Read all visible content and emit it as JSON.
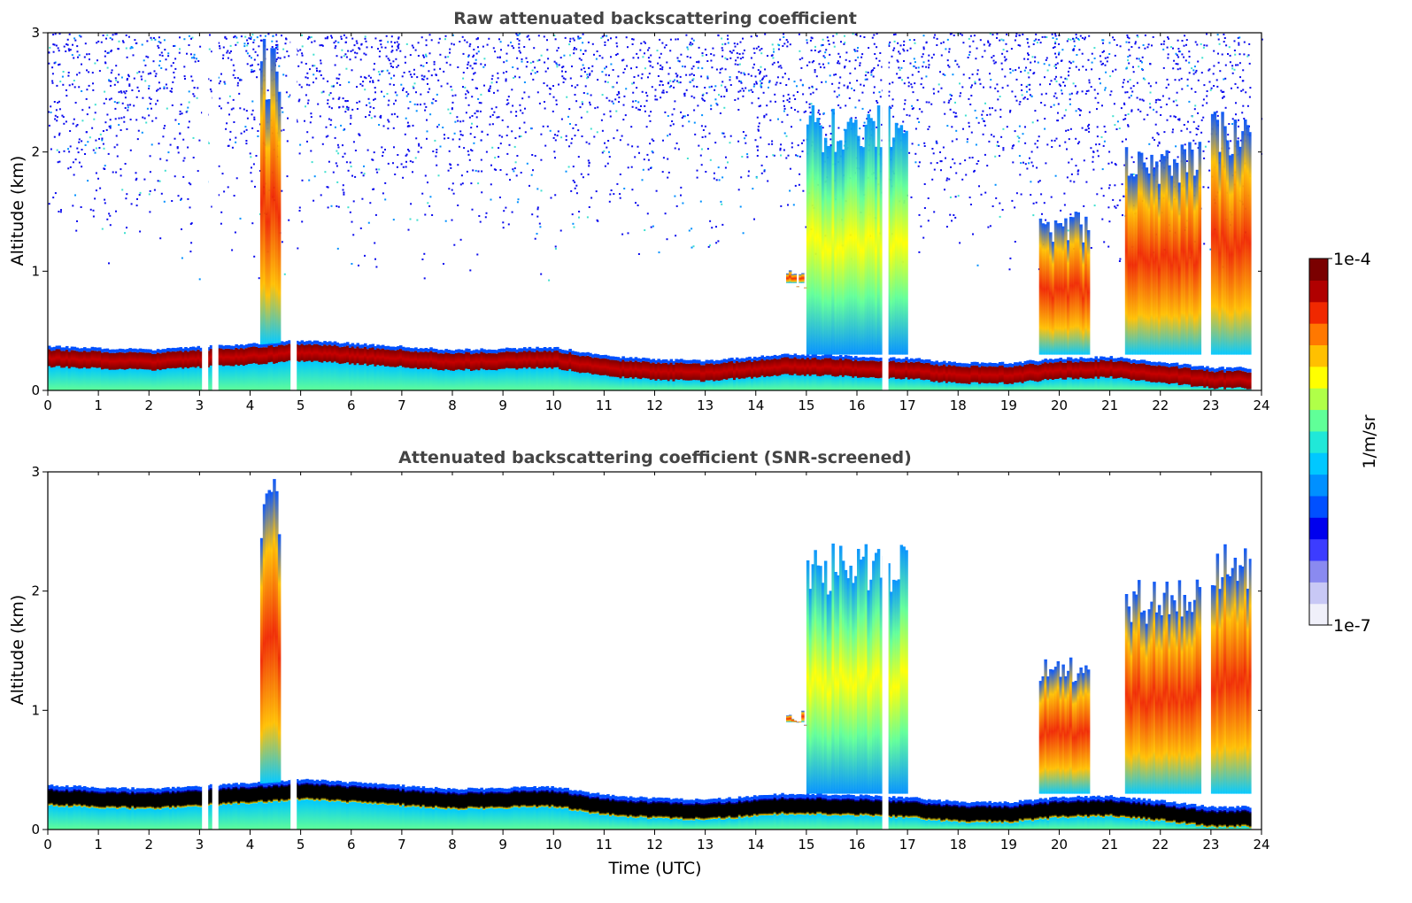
{
  "chart_data": [
    {
      "type": "heatmap",
      "title": "Raw attenuated backscattering coefficient",
      "xlabel": "",
      "ylabel": "Altitude (km)",
      "xlim": [
        0,
        24
      ],
      "ylim": [
        0,
        3
      ],
      "xticks": [
        "0",
        "1",
        "2",
        "3",
        "4",
        "5",
        "6",
        "7",
        "8",
        "9",
        "10",
        "11",
        "12",
        "13",
        "14",
        "15",
        "16",
        "17",
        "18",
        "19",
        "20",
        "21",
        "22",
        "23",
        "24"
      ],
      "yticks": [
        "0",
        "1",
        "2",
        "3"
      ],
      "screened": false
    },
    {
      "type": "heatmap",
      "title": "Attenuated backscattering coefficient (SNR-screened)",
      "xlabel": "Time (UTC)",
      "ylabel": "Altitude (km)",
      "xlim": [
        0,
        24
      ],
      "ylim": [
        0,
        3
      ],
      "xticks": [
        "0",
        "1",
        "2",
        "3",
        "4",
        "5",
        "6",
        "7",
        "8",
        "9",
        "10",
        "11",
        "12",
        "13",
        "14",
        "15",
        "16",
        "17",
        "18",
        "19",
        "20",
        "21",
        "22",
        "23",
        "24"
      ],
      "yticks": [
        "0",
        "1",
        "2",
        "3"
      ],
      "screened": true
    }
  ],
  "data_gaps_utc": [
    3.05,
    3.25,
    4.8,
    16.5
  ],
  "features": {
    "boundary_layer_km": [
      [
        0,
        0.28
      ],
      [
        2,
        0.25
      ],
      [
        4,
        0.3
      ],
      [
        5,
        0.33
      ],
      [
        8,
        0.25
      ],
      [
        10,
        0.27
      ],
      [
        11,
        0.2
      ],
      [
        12,
        0.17
      ],
      [
        13,
        0.16
      ],
      [
        14,
        0.19
      ],
      [
        14.5,
        0.21
      ],
      [
        15,
        0.21
      ],
      [
        17,
        0.18
      ],
      [
        18,
        0.14
      ],
      [
        19,
        0.14
      ],
      [
        19.5,
        0.16
      ],
      [
        20,
        0.18
      ],
      [
        21,
        0.19
      ],
      [
        22,
        0.15
      ],
      [
        23,
        0.1
      ],
      [
        24,
        0.1
      ]
    ],
    "clouds": [
      {
        "t0": 15.0,
        "t1": 17.0,
        "top_km": 2.4,
        "strength": "moderate"
      },
      {
        "t0": 19.6,
        "t1": 20.6,
        "top_km": 1.5,
        "strength": "strong"
      },
      {
        "t0": 21.3,
        "t1": 22.8,
        "top_km": 2.1,
        "strength": "strong"
      },
      {
        "t0": 14.6,
        "t1": 15.0,
        "top_km": 1.05,
        "strength": "strong"
      },
      {
        "t0": 23.0,
        "t1": 23.8,
        "top_km": 2.4,
        "strength": "strong"
      },
      {
        "t0": 4.2,
        "t1": 4.6,
        "top_km": 2.95,
        "strength": "strong"
      }
    ]
  },
  "colorbar": {
    "min_label": "1e-7",
    "max_label": "1e-4",
    "unit_label": "1/m/sr",
    "colors": [
      "#f0f0fa",
      "#c8c8f5",
      "#8a8af0",
      "#3c3cff",
      "#0000ee",
      "#0050ff",
      "#0090ff",
      "#00c8ff",
      "#20e8d8",
      "#60ff98",
      "#b0ff48",
      "#ffff00",
      "#ffc000",
      "#ff7800",
      "#f02800",
      "#b00000",
      "#7a0000"
    ]
  }
}
